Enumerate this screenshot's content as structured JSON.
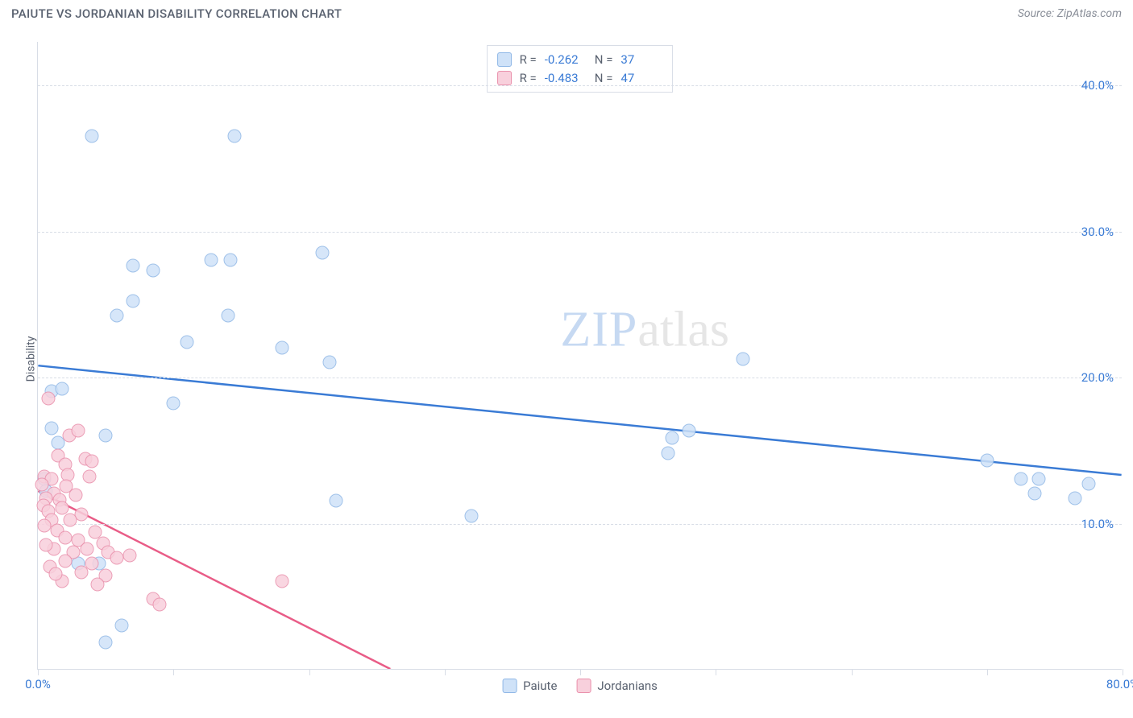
{
  "title": "PAIUTE VS JORDANIAN DISABILITY CORRELATION CHART",
  "source": "Source: ZipAtlas.com",
  "ylabel": "Disability",
  "watermark_zip": "ZIP",
  "watermark_atlas": "atlas",
  "chart": {
    "type": "scatter",
    "xlim": [
      0,
      80
    ],
    "ylim": [
      0,
      43
    ],
    "x_ticks_major": [
      0,
      10,
      20,
      30,
      40,
      50,
      60,
      70,
      80
    ],
    "x_tick_labels": [
      {
        "x": 0,
        "label": "0.0%"
      },
      {
        "x": 80,
        "label": "80.0%"
      }
    ],
    "y_gridlines": [
      10,
      20,
      30,
      40
    ],
    "y_tick_labels": [
      {
        "y": 10,
        "label": "10.0%"
      },
      {
        "y": 20,
        "label": "20.0%"
      },
      {
        "y": 30,
        "label": "30.0%"
      },
      {
        "y": 40,
        "label": "40.0%"
      }
    ],
    "background_color": "#ffffff",
    "grid_color": "#d8dde6",
    "axis_label_color": "#3a7bd5",
    "marker_size": 17,
    "series": [
      {
        "name": "Paiute",
        "fill": "#cfe2f8",
        "stroke": "#8fb7e6",
        "stroke_opacity": 0.9,
        "legend_swatch_fill": "#cfe2f8",
        "legend_swatch_stroke": "#8fb7e6",
        "R": "-0.262",
        "N": "37",
        "trend": {
          "x1": 0,
          "y1": 20.8,
          "x2": 80,
          "y2": 13.3,
          "color": "#3a7bd5",
          "width": 2.5,
          "dash_extrapolate": false
        },
        "points": [
          [
            4.0,
            36.5
          ],
          [
            14.5,
            36.5
          ],
          [
            21.0,
            28.5
          ],
          [
            7.0,
            27.6
          ],
          [
            8.5,
            27.3
          ],
          [
            12.8,
            28.0
          ],
          [
            14.2,
            28.0
          ],
          [
            7.0,
            25.2
          ],
          [
            5.8,
            24.2
          ],
          [
            14.0,
            24.2
          ],
          [
            18.0,
            22.0
          ],
          [
            11.0,
            22.4
          ],
          [
            10.0,
            18.2
          ],
          [
            1.0,
            19.0
          ],
          [
            1.8,
            19.2
          ],
          [
            5.0,
            16.0
          ],
          [
            1.5,
            15.5
          ],
          [
            1.0,
            16.5
          ],
          [
            0.5,
            13.0
          ],
          [
            3.0,
            7.2
          ],
          [
            4.5,
            7.2
          ],
          [
            6.2,
            3.0
          ],
          [
            5.0,
            1.8
          ],
          [
            21.5,
            21.0
          ],
          [
            22.0,
            11.5
          ],
          [
            32.0,
            10.5
          ],
          [
            46.8,
            15.8
          ],
          [
            48.0,
            16.3
          ],
          [
            46.5,
            14.8
          ],
          [
            52.0,
            21.2
          ],
          [
            70.0,
            14.3
          ],
          [
            72.5,
            13.0
          ],
          [
            73.8,
            13.0
          ],
          [
            73.5,
            12.0
          ],
          [
            76.5,
            11.7
          ],
          [
            77.5,
            12.7
          ],
          [
            0.6,
            12.2
          ]
        ]
      },
      {
        "name": "Jordanians",
        "fill": "#f8d0dc",
        "stroke": "#e98fab",
        "stroke_opacity": 0.9,
        "legend_swatch_fill": "#f8d0dc",
        "legend_swatch_stroke": "#e98fab",
        "R": "-0.483",
        "N": "47",
        "trend": {
          "x1": 0,
          "y1": 12.2,
          "x2": 26,
          "y2": 0,
          "color": "#e95c87",
          "width": 2.5,
          "dash_extrapolate": true,
          "dash_to_x": 30
        },
        "points": [
          [
            0.8,
            18.5
          ],
          [
            2.3,
            16.0
          ],
          [
            3.0,
            16.3
          ],
          [
            1.5,
            14.6
          ],
          [
            3.5,
            14.4
          ],
          [
            2.0,
            14.0
          ],
          [
            4.0,
            14.2
          ],
          [
            0.5,
            13.2
          ],
          [
            1.0,
            13.0
          ],
          [
            2.2,
            13.3
          ],
          [
            3.8,
            13.2
          ],
          [
            0.3,
            12.6
          ],
          [
            1.2,
            12.0
          ],
          [
            0.6,
            11.7
          ],
          [
            1.6,
            11.6
          ],
          [
            2.8,
            11.9
          ],
          [
            0.4,
            11.2
          ],
          [
            1.8,
            11.0
          ],
          [
            0.8,
            10.8
          ],
          [
            3.2,
            10.6
          ],
          [
            1.0,
            10.2
          ],
          [
            2.4,
            10.2
          ],
          [
            0.5,
            9.8
          ],
          [
            1.4,
            9.5
          ],
          [
            4.2,
            9.4
          ],
          [
            2.0,
            9.0
          ],
          [
            3.0,
            8.8
          ],
          [
            4.8,
            8.6
          ],
          [
            1.2,
            8.2
          ],
          [
            2.6,
            8.0
          ],
          [
            3.6,
            8.2
          ],
          [
            5.2,
            8.0
          ],
          [
            2.0,
            7.4
          ],
          [
            4.0,
            7.2
          ],
          [
            5.8,
            7.6
          ],
          [
            6.8,
            7.8
          ],
          [
            3.2,
            6.6
          ],
          [
            5.0,
            6.4
          ],
          [
            1.8,
            6.0
          ],
          [
            4.4,
            5.8
          ],
          [
            8.5,
            4.8
          ],
          [
            9.0,
            4.4
          ],
          [
            18.0,
            6.0
          ],
          [
            0.9,
            7.0
          ],
          [
            1.3,
            6.5
          ],
          [
            0.6,
            8.5
          ],
          [
            2.1,
            12.5
          ]
        ]
      }
    ]
  },
  "legend": [
    {
      "label": "Paiute",
      "fill": "#cfe2f8",
      "stroke": "#8fb7e6"
    },
    {
      "label": "Jordanians",
      "fill": "#f8d0dc",
      "stroke": "#e98fab"
    }
  ]
}
